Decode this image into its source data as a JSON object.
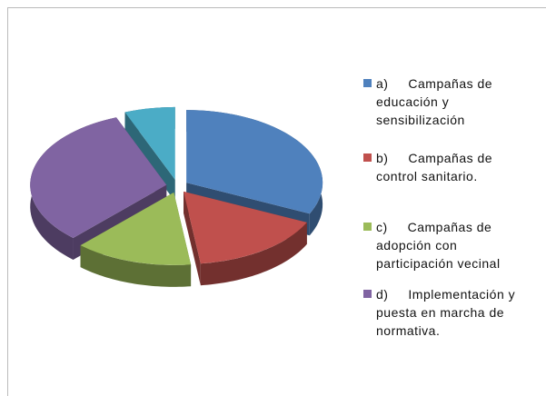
{
  "chart_data": {
    "type": "pie3d",
    "categories": [
      "a)     Campañas de educación y sensibilización",
      "b)     Campañas de control sanitario.",
      "c)     Campañas de adopción con participación vecinal",
      "d)     Implementación y puesta en marcha de normativa.",
      null
    ],
    "values": [
      32,
      16,
      14,
      32,
      6
    ],
    "colors": [
      "#4f81bd",
      "#c0504d",
      "#9bbb59",
      "#8064a2",
      "#4bacc6"
    ]
  }
}
